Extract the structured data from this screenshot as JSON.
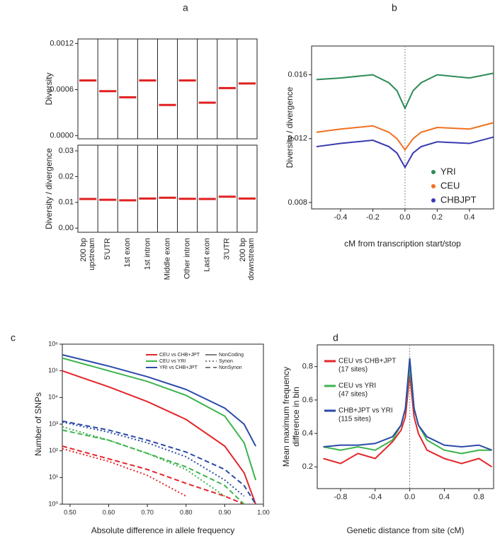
{
  "chart_data": [
    {
      "type": "segment",
      "panel": "a",
      "ylabel": "Diversity",
      "color": "#e02020",
      "values": [
        0.00072,
        0.00058,
        0.0005,
        0.00072,
        0.0004,
        0.00072,
        0.00043,
        0.00062,
        0.00068
      ],
      "ylim": [
        -4e-05,
        0.00126
      ],
      "yticks": [
        {
          "value": 0,
          "label": "0.0000"
        },
        0.0006,
        0.0012
      ]
    },
    {
      "type": "segment",
      "ylabel": "Diversity / divergence",
      "color": "#e02020",
      "categories": [
        [
          "200 bp",
          "upstream"
        ],
        [
          "5'UTR"
        ],
        [
          "1st exon"
        ],
        [
          "1st intron"
        ],
        [
          "Middle exon"
        ],
        [
          "Other intron"
        ],
        [
          "Last exon"
        ],
        [
          "3'UTR"
        ],
        [
          "200 bp",
          "downstream"
        ]
      ],
      "values": [
        0.0113,
        0.011,
        0.0108,
        0.0115,
        0.0118,
        0.0114,
        0.0113,
        0.0122,
        0.0115
      ],
      "ylim": [
        -0.0016,
        0.0322
      ],
      "yticks": [
        {
          "value": 0,
          "label": "0.00"
        },
        0.01,
        0.02,
        0.03
      ]
    },
    {
      "type": "line",
      "panel": "b",
      "xlabel": "cM from transcription start/stop",
      "ylabel": "Diversity / divergence",
      "x": [
        -0.55,
        -0.4,
        -0.2,
        -0.1,
        -0.05,
        0,
        0.05,
        0.1,
        0.2,
        0.4,
        0.55
      ],
      "series": [
        {
          "name": "YRI",
          "color": "#2e8b57",
          "values": [
            0.0157,
            0.0158,
            0.016,
            0.0155,
            0.015,
            0.0139,
            0.015,
            0.0155,
            0.016,
            0.0158,
            0.0161
          ]
        },
        {
          "name": "CEU",
          "color": "#f07020",
          "values": [
            0.0124,
            0.0126,
            0.0128,
            0.0124,
            0.012,
            0.0113,
            0.012,
            0.0124,
            0.0127,
            0.0126,
            0.013
          ]
        },
        {
          "name": "CHBJPT",
          "color": "#3a3ab0",
          "values": [
            0.0115,
            0.0117,
            0.0119,
            0.0115,
            0.0111,
            0.0102,
            0.0111,
            0.0115,
            0.0118,
            0.0117,
            0.0121
          ]
        }
      ],
      "xlim": [
        -0.58,
        0.55
      ],
      "xticks": [
        -0.4,
        -0.2,
        {
          "value": 0,
          "label": "0.0"
        },
        0.2,
        0.4
      ],
      "ylim": [
        0.0076,
        0.0178
      ],
      "yticks": [
        0.008,
        0.012,
        0.016
      ]
    },
    {
      "type": "multiline",
      "panel": "c",
      "log": true,
      "xlabel": "Absolute difference in allele frequency",
      "ylabel": "Number of SNPs",
      "x": [
        0.48,
        0.6,
        0.7,
        0.8,
        0.9,
        0.95,
        0.98
      ],
      "line_styles": [
        {
          "name": "NonCoding",
          "dash": "solid"
        },
        {
          "name": "Synon",
          "dash": "dotted"
        },
        {
          "name": "NonSynon",
          "dash": "dashed"
        }
      ],
      "series": [
        {
          "name": "CEU vs CHB+JPT",
          "color": "#e3262b",
          "values": [
            [
              100000,
              25000,
              7000,
              1500,
              150,
              15,
              1
            ],
            [
              120,
              40,
              12,
              2,
              null,
              null,
              null
            ],
            [
              150,
              50,
              20,
              6,
              2,
              1,
              null
            ]
          ]
        },
        {
          "name": "CEU vs YRI",
          "color": "#3cb44b",
          "values": [
            [
              300000,
              100000,
              40000,
              12000,
              2000,
              200,
              8
            ],
            [
              800,
              250,
              80,
              20,
              2,
              null,
              null
            ],
            [
              600,
              250,
              80,
              25,
              5,
              1,
              null
            ]
          ]
        },
        {
          "name": "YRI vs CHB+JPT",
          "color": "#2b4aa8",
          "values": [
            [
              400000,
              150000,
              60000,
              20000,
              4000,
              1000,
              150
            ],
            [
              1200,
              500,
              200,
              60,
              8,
              2,
              null
            ],
            [
              1300,
              600,
              250,
              90,
              20,
              5,
              1
            ]
          ]
        }
      ],
      "xlim": [
        0.48,
        1.0
      ],
      "xticks": [
        {
          "value": 0.5,
          "label": "0.50"
        },
        {
          "value": 0.6,
          "label": "0.60"
        },
        {
          "value": 0.7,
          "label": "0.70"
        },
        {
          "value": 0.8,
          "label": "0.80"
        },
        {
          "value": 0.9,
          "label": "0.90"
        },
        {
          "value": 1.0,
          "label": "1.00"
        }
      ],
      "ylim": [
        1,
        1000000
      ],
      "yticks": [
        {
          "value": 1,
          "label": "10⁰"
        },
        {
          "value": 10,
          "label": "10¹"
        },
        {
          "value": 100,
          "label": "10²"
        },
        {
          "value": 1000,
          "label": "10³"
        },
        {
          "value": 10000,
          "label": "10⁴"
        },
        {
          "value": 100000,
          "label": "10⁵"
        },
        {
          "value": 1000000,
          "label": "10⁶"
        }
      ]
    },
    {
      "type": "line",
      "panel": "d",
      "xlabel": "Genetic distance from site (cM)",
      "ylabel": [
        "Mean maximum frequency",
        "difference in bin"
      ],
      "x": [
        -1,
        -0.8,
        -0.6,
        -0.4,
        -0.2,
        -0.1,
        -0.05,
        0,
        0.05,
        0.1,
        0.2,
        0.4,
        0.6,
        0.8,
        0.95
      ],
      "series": [
        {
          "name": "CEU vs CHB+JPT",
          "note": "(17 sites)",
          "color": "#e3262b",
          "values": [
            0.25,
            0.22,
            0.28,
            0.25,
            0.35,
            0.42,
            0.5,
            0.75,
            0.5,
            0.4,
            0.3,
            0.25,
            0.22,
            0.25,
            0.2
          ]
        },
        {
          "name": "CEU vs YRI",
          "note": "(47 sites)",
          "color": "#3cb44b",
          "values": [
            0.32,
            0.3,
            0.32,
            0.3,
            0.36,
            0.45,
            0.55,
            0.8,
            0.55,
            0.45,
            0.36,
            0.3,
            0.28,
            0.3,
            0.3
          ]
        },
        {
          "name": "CHB+JPT vs YRI",
          "note": "(115 sites)",
          "color": "#2b4aa8",
          "values": [
            0.32,
            0.33,
            0.33,
            0.34,
            0.38,
            0.45,
            0.55,
            0.85,
            0.55,
            0.45,
            0.38,
            0.33,
            0.32,
            0.33,
            0.3
          ]
        }
      ],
      "xlim": [
        -1.07,
        0.97
      ],
      "xticks": [
        -0.8,
        -0.4,
        {
          "value": 0,
          "label": "0.0"
        },
        0.4,
        0.8
      ],
      "ylim": [
        0.07,
        0.93
      ],
      "yticks": [
        0.2,
        0.4,
        0.6,
        0.8
      ]
    }
  ]
}
